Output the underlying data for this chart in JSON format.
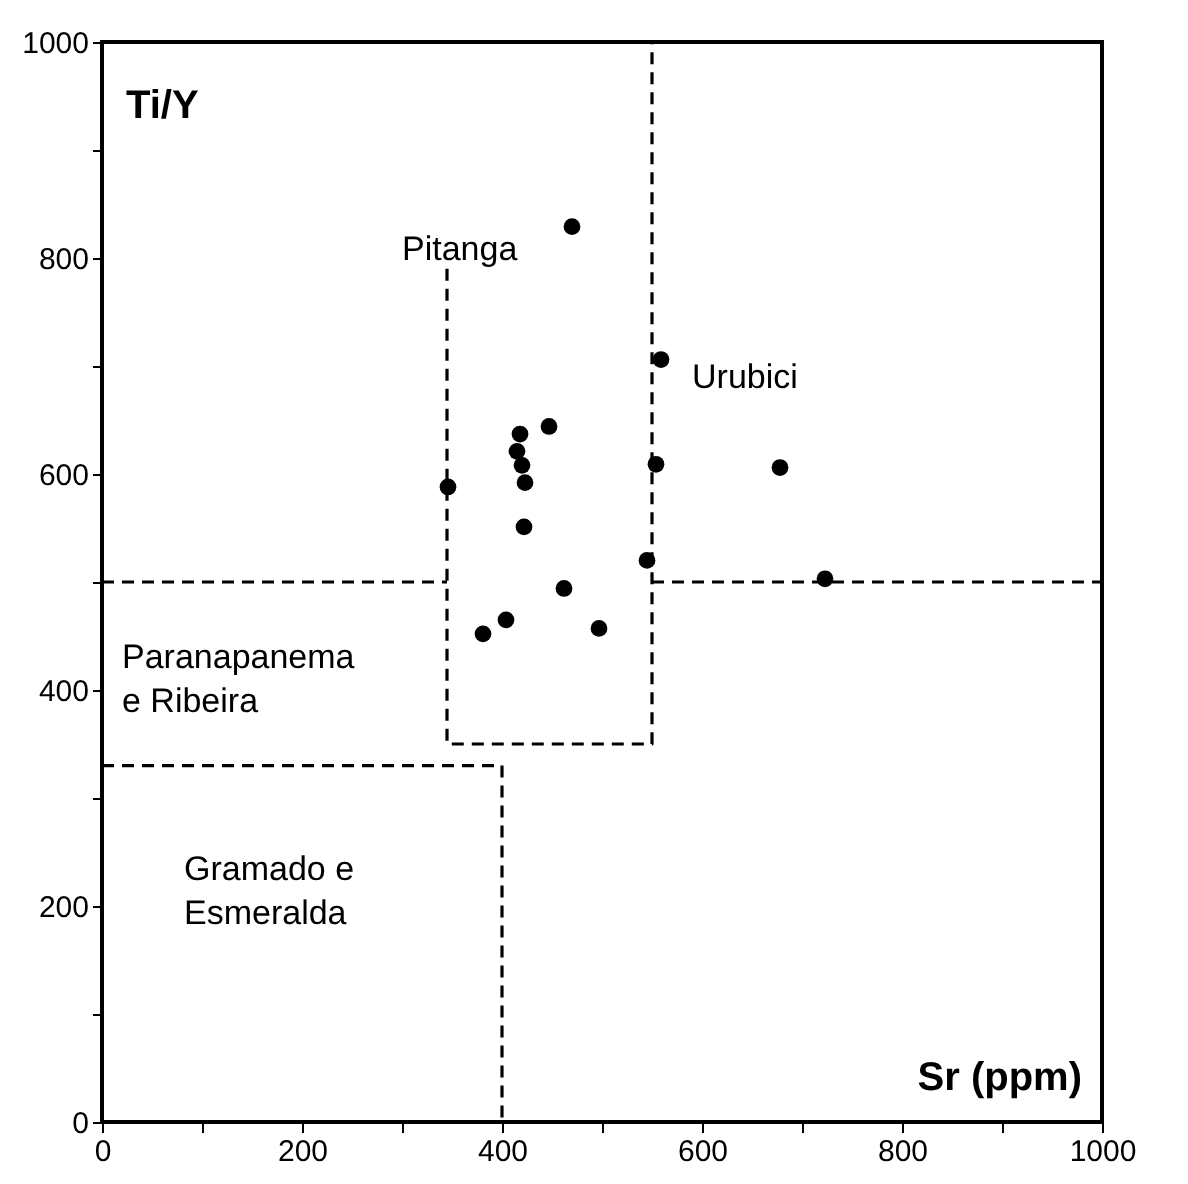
{
  "chart_data": {
    "type": "scatter",
    "xlabel": "Sr (ppm)",
    "ylabel": "Ti/Y",
    "grid": false,
    "xlim": [
      0,
      1000
    ],
    "ylim": [
      0,
      1000
    ],
    "xticks": [
      0,
      {
        "value": 100,
        "label": null
      },
      200,
      {
        "value": 300,
        "label": null
      },
      400,
      {
        "value": 500,
        "label": null
      },
      600,
      {
        "value": 700,
        "label": null
      },
      800,
      {
        "value": 900,
        "label": null
      },
      1000
    ],
    "yticks": [
      0,
      {
        "value": 100,
        "label": null
      },
      200,
      {
        "value": 300,
        "label": null
      },
      400,
      {
        "value": 500,
        "label": null
      },
      600,
      {
        "value": 700,
        "label": null
      },
      800,
      {
        "value": 900,
        "label": null
      },
      1000
    ],
    "series": [
      {
        "marker": "circle",
        "color": "#000000",
        "x": [
          470,
          559,
          447,
          418,
          415,
          420,
          423,
          346,
          554,
          678,
          422,
          545,
          723,
          462,
          404,
          381,
          497
        ],
        "values": [
          829,
          706,
          644,
          637,
          621,
          608,
          592,
          588,
          609,
          606,
          551,
          520,
          503,
          494,
          465,
          452,
          457
        ]
      },
      {
        "type": "line",
        "line_style": "dashed",
        "color": "#000000",
        "x": [
          345,
          345,
          550,
          550
        ],
        "values": [
          790,
          350,
          350,
          1000
        ]
      },
      {
        "type": "line",
        "line_style": "dashed",
        "color": "#000000",
        "x": [
          0,
          345
        ],
        "values": [
          500,
          500
        ]
      },
      {
        "type": "line",
        "line_style": "dashed",
        "color": "#000000",
        "x": [
          550,
          1000
        ],
        "values": [
          500,
          500
        ]
      },
      {
        "type": "line",
        "line_style": "dashed",
        "color": "#000000",
        "x": [
          0,
          400,
          400
        ],
        "values": [
          330,
          330,
          0
        ]
      }
    ],
    "annotations": [
      "Pitanga",
      "Urubici",
      "Paranapanema\ne Ribeira",
      "Gramado e\nEsmeralda"
    ]
  }
}
